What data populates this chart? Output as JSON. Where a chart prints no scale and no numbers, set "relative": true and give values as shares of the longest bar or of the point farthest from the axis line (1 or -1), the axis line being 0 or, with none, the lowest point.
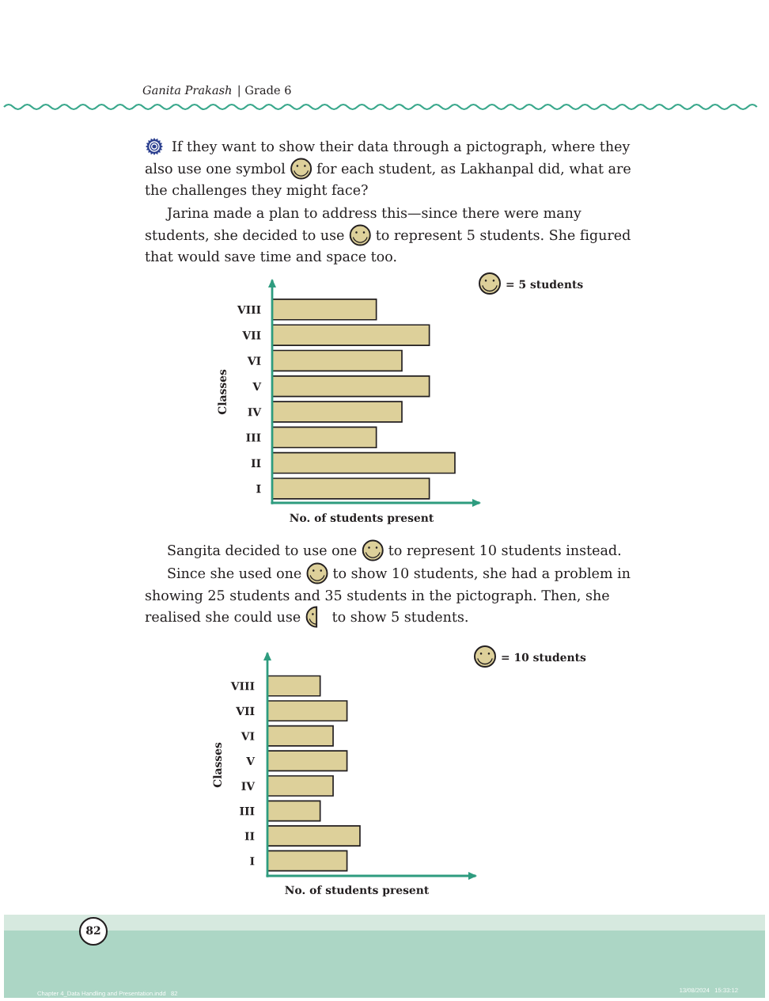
{
  "chart_data": [
    {
      "type": "bar",
      "orientation": "horizontal",
      "relative": true,
      "tick_labels": "y",
      "categories": [
        "VIII",
        "VII",
        "VI",
        "V",
        "IV",
        "III",
        "II",
        "I"
      ],
      "values": [
        0.57,
        0.86,
        0.71,
        0.86,
        0.71,
        0.57,
        1,
        0.86
      ],
      "color": "#ddd09a",
      "xlabel": "No. of students present",
      "ylabel": "Classes",
      "annotations": [
        "Ganita Prakash",
        "| Grade 6",
        "If they want to show their data through a pictograph, where they",
        "also use one symbol",
        "for each student, as Lakhanpal did, what are",
        "the challenges they might face?",
        "Jarina made a plan to address this—since there were many",
        "students, she decided to use",
        "to represent 5 students. She figured",
        "that would save time and space too.",
        "= 5 students"
      ]
    },
    {
      "type": "bar",
      "orientation": "horizontal",
      "relative": true,
      "tick_labels": "y",
      "categories": [
        "VIII",
        "VII",
        "VI",
        "V",
        "IV",
        "III",
        "II",
        "I"
      ],
      "values": [
        0.57,
        0.86,
        0.71,
        0.86,
        0.71,
        0.57,
        1,
        0.86
      ],
      "color": "#ddd09a",
      "xlabel": "No. of students present",
      "ylabel": "Classes",
      "annotations": [
        "Sangita decided to use one",
        "to represent 10 students instead.",
        "Since she used one",
        "to show 10 students, she had a problem in",
        "showing 25 students and 35 students in the pictograph. Then, she",
        "realised she could use",
        "to show 5 students.",
        "= 10 students",
        "82",
        "Chapter 4_Data Handling and Presentation.indd   82",
        "13/08/2024   15:33:12"
      ]
    }
  ]
}
